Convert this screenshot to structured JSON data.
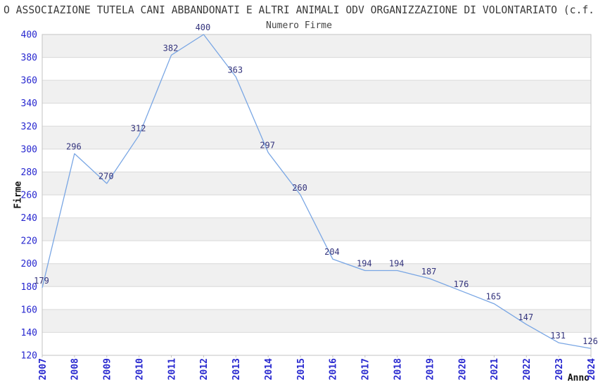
{
  "page_title": "O ASSOCIAZIONE TUTELA CANI ABBANDONATI E ALTRI ANIMALI ODV ORGANIZZAZIONE DI VOLONTARIATO (c.f.",
  "chart_data": {
    "type": "line",
    "title": "Numero Firme",
    "xlabel": "Anno",
    "ylabel": "Firme",
    "categories": [
      "2007",
      "2008",
      "2009",
      "2010",
      "2011",
      "2012",
      "2013",
      "2014",
      "2015",
      "2016",
      "2017",
      "2018",
      "2019",
      "2020",
      "2021",
      "2022",
      "2023",
      "2024"
    ],
    "values": [
      179,
      296,
      270,
      312,
      382,
      400,
      363,
      297,
      260,
      204,
      194,
      194,
      187,
      176,
      165,
      147,
      131,
      126
    ],
    "ylim": [
      120,
      400
    ],
    "ytick_step": 20,
    "grid": true,
    "legend": "none",
    "banded_background": true,
    "colors": {
      "line": "#79a6e4",
      "band": "#f0f0f0",
      "grid": "#d9d9d9",
      "border": "#c3c3c3",
      "y_tick_label": "#2727cf",
      "x_tick_label": "#2727cf",
      "point_label": "#34347d",
      "title": "#3b3b3b",
      "axis_title": "#111111"
    }
  }
}
